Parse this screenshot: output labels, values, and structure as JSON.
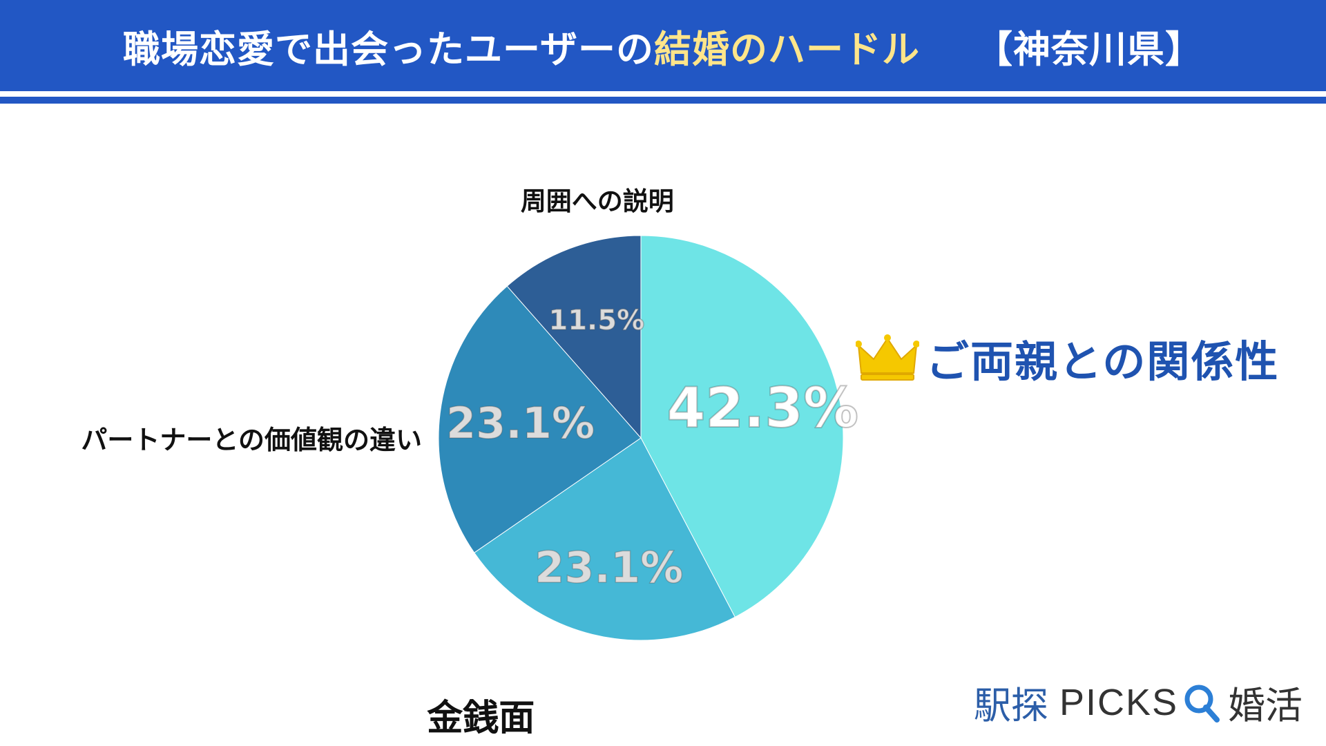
{
  "header": {
    "title_part1": "職場恋愛で出会ったユーザーの",
    "title_highlight": "結婚のハードル",
    "title_region": "【神奈川県】"
  },
  "chart_data": {
    "type": "pie",
    "title": "職場恋愛で出会ったユーザーの結婚のハードル 【神奈川県】",
    "start": "12 o'clock, clockwise",
    "slices": [
      {
        "label": "ご両親との関係性",
        "value": 42.3,
        "display": "42.3%",
        "color": "#6ee4e6",
        "top": true
      },
      {
        "label": "金銭面",
        "value": 23.1,
        "display": "23.1%",
        "color": "#45b8d6"
      },
      {
        "label": "パートナーとの価値観の違い",
        "value": 23.1,
        "display": "23.1%",
        "color": "#2e8ab9"
      },
      {
        "label": "周囲への説明",
        "value": 11.5,
        "display": "11.5%",
        "color": "#2d5e96"
      }
    ]
  },
  "colors": {
    "header_bg": "#2257c4",
    "header_highlight": "#ffe58a",
    "top_label": "#1f53b0",
    "value_text": "#dcdcdc"
  },
  "logo": {
    "kanji": "駅探",
    "picks": "PICKS",
    "konkatsu": "婚活",
    "icon": "magnifier-icon"
  }
}
